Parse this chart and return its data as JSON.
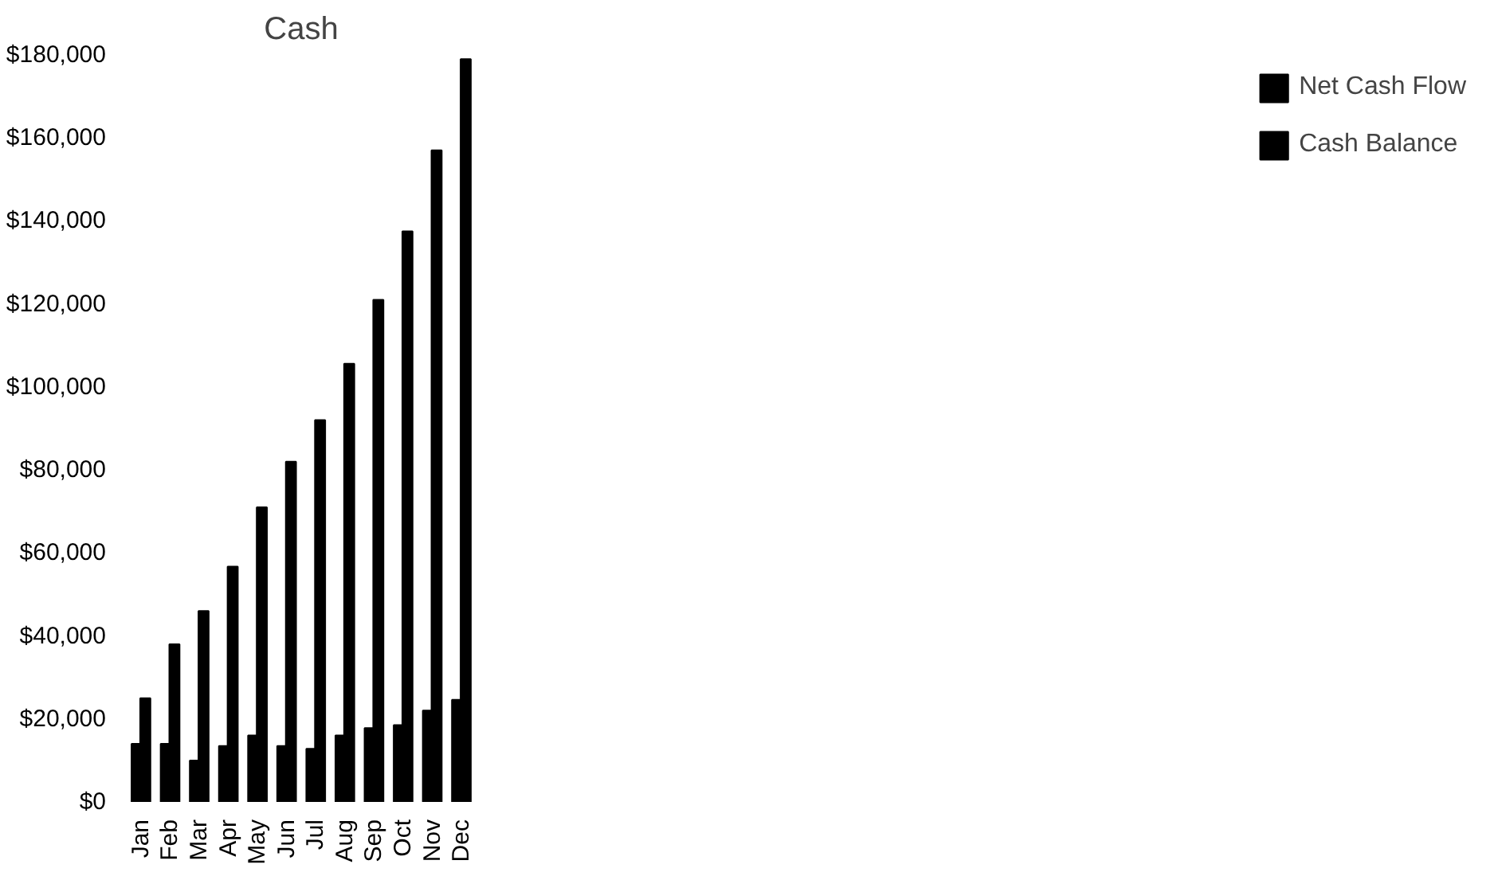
{
  "chart_data": {
    "type": "bar",
    "title": "Cash",
    "categories": [
      "Jan",
      "Feb",
      "Mar",
      "Apr",
      "May",
      "Jun",
      "Jul",
      "Aug",
      "Sep",
      "Oct",
      "Nov",
      "Dec"
    ],
    "series": [
      {
        "name": "Net Cash Flow",
        "color": "#000000",
        "values": [
          14000,
          14000,
          10000,
          13500,
          16000,
          13500,
          12800,
          16000,
          17800,
          18500,
          22000,
          24600
        ]
      },
      {
        "name": "Cash Balance",
        "color": "#000000",
        "values": [
          25000,
          38000,
          46000,
          56700,
          71000,
          82000,
          92000,
          105600,
          121000,
          137500,
          157000,
          179000
        ]
      }
    ],
    "ylim": [
      0,
      180000
    ],
    "yticks": [
      {
        "value": 0,
        "label": "$0"
      },
      {
        "value": 20000,
        "label": "$20,000"
      },
      {
        "value": 40000,
        "label": "$40,000"
      },
      {
        "value": 60000,
        "label": "$60,000"
      },
      {
        "value": 80000,
        "label": "$80,000"
      },
      {
        "value": 100000,
        "label": "$100,000"
      },
      {
        "value": 120000,
        "label": "$120,000"
      },
      {
        "value": 140000,
        "label": "$140,000"
      },
      {
        "value": 160000,
        "label": "$160,000"
      },
      {
        "value": 180000,
        "label": "$180,000"
      }
    ],
    "grid": false,
    "legend": "right"
  }
}
